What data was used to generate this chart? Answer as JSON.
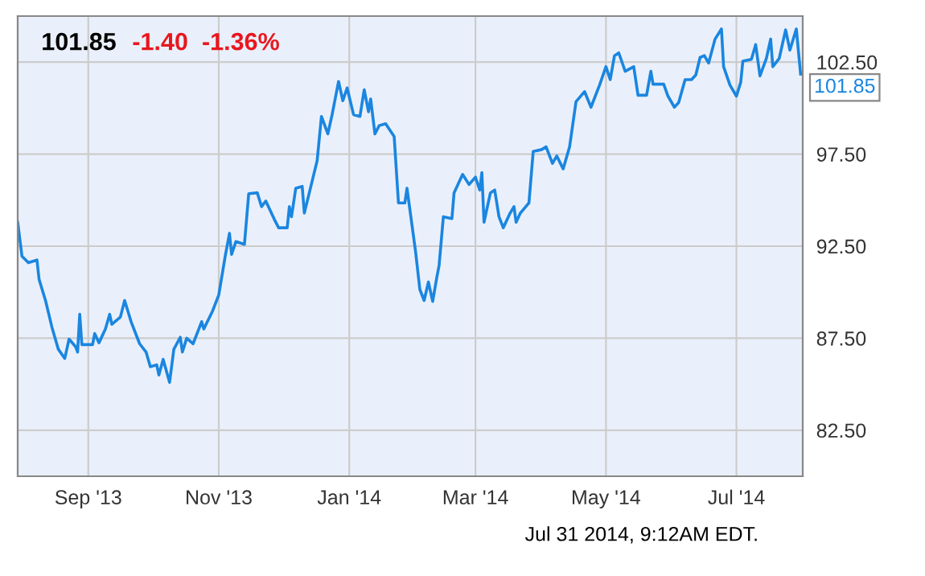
{
  "chart_data": {
    "type": "line",
    "title": "101.85",
    "subtitle": "-1.40  -1.36%",
    "x": [
      "2013-07-30",
      "2013-08-01",
      "2013-08-04",
      "2013-08-08",
      "2013-08-09",
      "2013-08-12",
      "2013-08-15",
      "2013-08-18",
      "2013-08-21",
      "2013-08-23",
      "2013-08-26",
      "2013-08-27",
      "2013-08-28",
      "2013-08-29",
      "2013-09-03",
      "2013-09-04",
      "2013-09-06",
      "2013-09-09",
      "2013-09-11",
      "2013-09-12",
      "2013-09-16",
      "2013-09-18",
      "2013-09-21",
      "2013-09-25",
      "2013-09-28",
      "2013-09-30",
      "2013-10-03",
      "2013-10-04",
      "2013-10-06",
      "2013-10-09",
      "2013-10-11",
      "2013-10-14",
      "2013-10-15",
      "2013-10-17",
      "2013-10-20",
      "2013-10-24",
      "2013-10-25",
      "2013-10-29",
      "2013-11-01",
      "2013-11-04",
      "2013-11-06",
      "2013-11-07",
      "2013-11-09",
      "2013-11-13",
      "2013-11-15",
      "2013-11-19",
      "2013-11-21",
      "2013-11-23",
      "2013-11-27",
      "2013-11-29",
      "2013-12-03",
      "2013-12-04",
      "2013-12-05",
      "2013-12-07",
      "2013-12-10",
      "2013-12-11",
      "2013-12-13",
      "2013-12-17",
      "2013-12-19",
      "2013-12-22",
      "2013-12-24",
      "2013-12-27",
      "2013-12-29",
      "2013-12-31",
      "2014-01-03",
      "2014-01-06",
      "2014-01-08",
      "2014-01-10",
      "2014-01-11",
      "2014-01-13",
      "2014-01-15",
      "2014-01-18",
      "2014-01-22",
      "2014-01-24",
      "2014-01-27",
      "2014-01-28",
      "2014-02-01",
      "2014-02-03",
      "2014-02-05",
      "2014-02-07",
      "2014-02-09",
      "2014-02-11",
      "2014-02-12",
      "2014-02-14",
      "2014-02-18",
      "2014-02-19",
      "2014-02-23",
      "2014-02-26",
      "2014-03-01",
      "2014-03-03",
      "2014-03-04",
      "2014-03-05",
      "2014-03-08",
      "2014-03-10",
      "2014-03-12",
      "2014-03-14",
      "2014-03-17",
      "2014-03-19",
      "2014-03-20",
      "2014-03-22",
      "2014-03-26",
      "2014-03-28",
      "2014-04-01",
      "2014-04-03",
      "2014-04-06",
      "2014-04-08",
      "2014-04-11",
      "2014-04-14",
      "2014-04-17",
      "2014-04-21",
      "2014-04-24",
      "2014-04-28",
      "2014-05-01",
      "2014-05-03",
      "2014-05-05",
      "2014-05-07",
      "2014-05-10",
      "2014-05-14",
      "2014-05-16",
      "2014-05-20",
      "2014-05-22",
      "2014-05-23",
      "2014-05-28",
      "2014-05-30",
      "2014-06-02",
      "2014-06-04",
      "2014-06-07",
      "2014-06-10",
      "2014-06-12",
      "2014-06-14",
      "2014-06-16",
      "2014-06-18",
      "2014-06-21",
      "2014-06-24",
      "2014-06-25",
      "2014-06-28",
      "2014-07-01",
      "2014-07-03",
      "2014-07-04",
      "2014-07-08",
      "2014-07-10",
      "2014-07-12",
      "2014-07-15",
      "2014-07-17",
      "2014-07-18",
      "2014-07-21",
      "2014-07-24",
      "2014-07-26",
      "2014-07-29",
      "2014-07-31"
    ],
    "series": [
      {
        "color": "#1a86e0",
        "values": [
          93.8,
          91.95,
          91.6,
          91.75,
          90.7,
          89.55,
          88.1,
          86.9,
          86.4,
          87.45,
          87.05,
          86.75,
          88.8,
          87.15,
          87.15,
          87.75,
          87.25,
          88.0,
          88.8,
          88.25,
          88.65,
          89.55,
          88.4,
          87.2,
          86.75,
          85.95,
          86.05,
          85.5,
          86.35,
          85.1,
          86.9,
          87.55,
          86.75,
          87.5,
          87.2,
          88.4,
          88.0,
          88.95,
          89.85,
          91.95,
          93.2,
          92.05,
          92.75,
          92.6,
          95.35,
          95.4,
          94.65,
          94.95,
          93.95,
          93.5,
          93.5,
          94.65,
          94.1,
          95.65,
          95.75,
          94.3,
          95.25,
          97.15,
          99.55,
          98.6,
          99.65,
          101.45,
          100.4,
          101.1,
          99.65,
          99.55,
          101.0,
          99.8,
          100.5,
          98.6,
          99.05,
          99.15,
          98.45,
          94.85,
          94.85,
          95.65,
          92.2,
          90.15,
          89.55,
          90.55,
          89.5,
          90.85,
          91.45,
          94.1,
          94.0,
          95.4,
          96.4,
          95.85,
          96.25,
          95.55,
          96.5,
          93.8,
          95.4,
          95.55,
          94.1,
          93.5,
          94.25,
          94.65,
          93.8,
          94.3,
          94.85,
          97.65,
          97.75,
          97.9,
          97.0,
          97.4,
          96.7,
          97.9,
          100.35,
          100.9,
          100.05,
          101.25,
          102.25,
          101.55,
          102.85,
          103.0,
          102.0,
          102.25,
          100.7,
          100.7,
          102.0,
          101.3,
          101.3,
          100.65,
          100.05,
          100.3,
          101.55,
          101.55,
          101.8,
          102.75,
          102.85,
          102.45,
          103.75,
          104.3,
          102.25,
          101.25,
          100.65,
          101.4,
          102.55,
          102.65,
          103.45,
          101.75,
          102.7,
          103.75,
          102.25,
          102.7,
          104.25,
          103.15,
          104.3,
          101.85
        ]
      }
    ],
    "xlim": [
      "2013-07-30",
      "2014-08-01"
    ],
    "ylim": [
      80,
      105
    ],
    "xticks": [
      {
        "value": "2013-09-01",
        "label": "Sep '13"
      },
      {
        "value": "2013-11-01",
        "label": "Nov '13"
      },
      {
        "value": "2014-01-01",
        "label": "Jan '14"
      },
      {
        "value": "2014-03-01",
        "label": "Mar '14"
      },
      {
        "value": "2014-05-01",
        "label": "May '14"
      },
      {
        "value": "2014-07-01",
        "label": "Jul '14"
      }
    ],
    "yticks": [
      {
        "value": 82.5,
        "label": "82.50"
      },
      {
        "value": 87.5,
        "label": "87.50"
      },
      {
        "value": 92.5,
        "label": "92.50"
      },
      {
        "value": 97.5,
        "label": "97.50"
      },
      {
        "value": 102.5,
        "label": "102.50"
      }
    ],
    "grid": true,
    "line_style": "solid",
    "marker": "none",
    "annotations": [
      {
        "text": "101.85",
        "x": "2014-07-31",
        "y": 101.85
      },
      "Jul 31 2014, 9:12AM EDT."
    ]
  }
}
